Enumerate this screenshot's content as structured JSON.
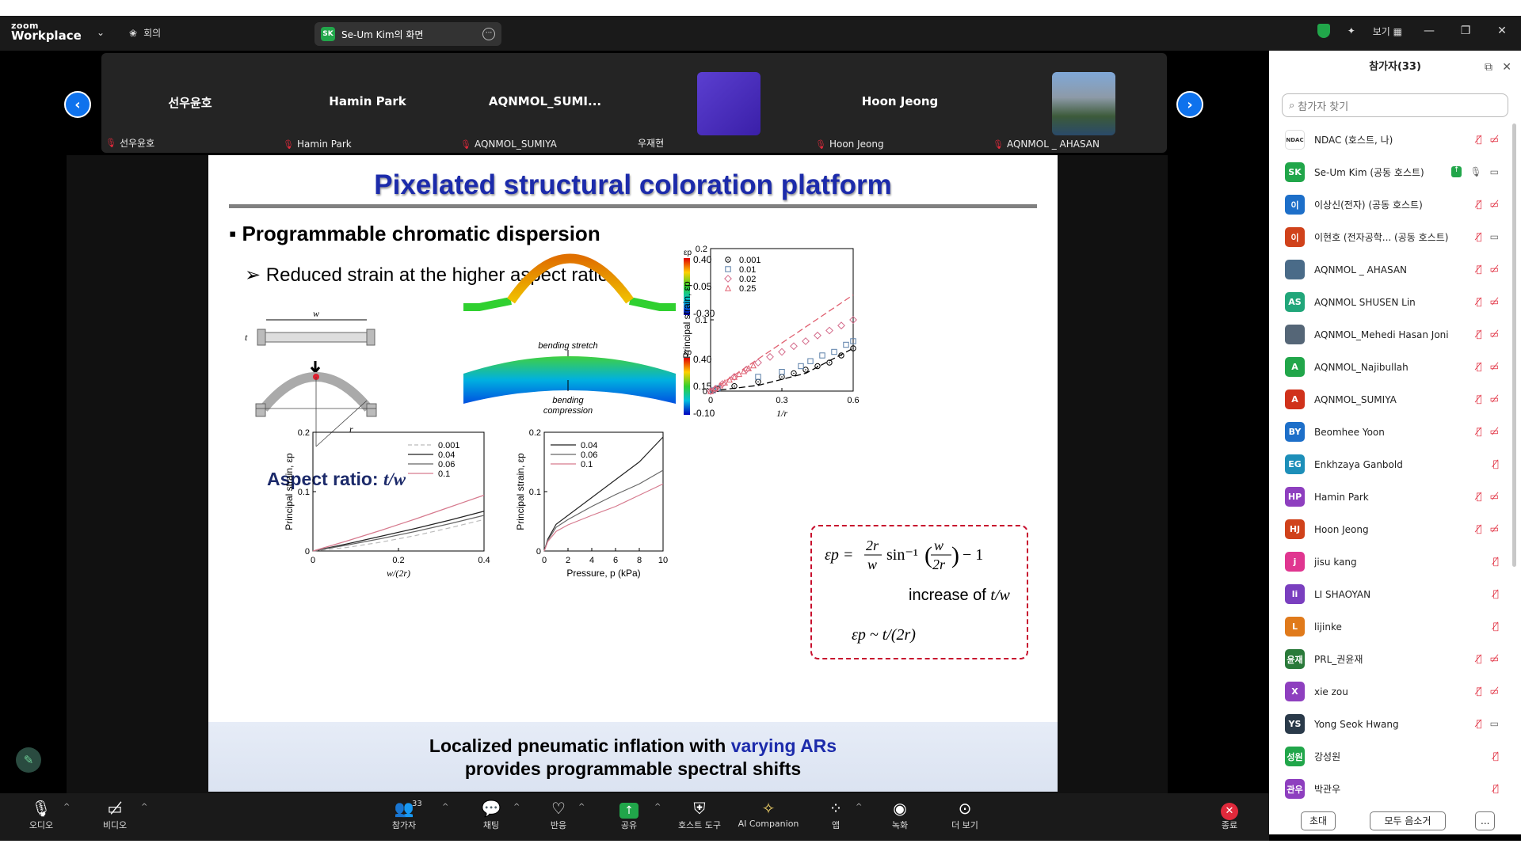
{
  "app": {
    "logo_small": "zoom",
    "logo_big": "Workplace",
    "meeting_menu": "회의",
    "share_label": "Se-Um Kim의 화면",
    "share_initials": "SK",
    "view_label": "보기"
  },
  "gallery": {
    "tiles": [
      {
        "name": "선우윤호",
        "label": "선우윤호"
      },
      {
        "name": "Hamin Park",
        "label": "Hamin Park"
      },
      {
        "name": "AQNMOL_SUMI...",
        "label": "AQNMOL_SUMIYA"
      },
      {
        "name": "",
        "label": "우재현"
      },
      {
        "name": "Hoon Jeong",
        "label": "Hoon Jeong"
      },
      {
        "name": "",
        "label": "AQNMOL _ AHASAN"
      }
    ]
  },
  "slide": {
    "title": "Pixelated structural coloration platform",
    "bullet1": "Programmable chromatic dispersion",
    "bullet2": "Reduced strain at the higher aspect ratio",
    "aspect_text": "Aspect ratio: ",
    "aspect_var": "t/w",
    "schematic_w": "w",
    "schematic_t": "t",
    "schematic_r": "r",
    "sim_label_stretch": "bending stretch",
    "sim_label_compress1": "bending",
    "sim_label_compress2": "compression",
    "sim_cbar_label": "εp",
    "sim_top_ticks": [
      "0.40",
      "0.05",
      "-0.30"
    ],
    "sim_bot_ticks": [
      "0.40",
      "0.15",
      "-0.10"
    ],
    "eq_line1_lhs": "εp = ",
    "eq_inc": "increase of ",
    "eq_inc_var": "t/w",
    "eq_line3": "εp ~ t/(2r)",
    "caption_1a": "Localized pneumatic inflation with ",
    "caption_1b": "varying ARs",
    "caption_2": "provides programmable spectral shifts"
  },
  "chart_data": [
    {
      "type": "scatter",
      "xlabel": "1/r",
      "ylabel": "Principal strain, εp",
      "xlim": [
        0,
        0.6
      ],
      "ylim": [
        0,
        0.2
      ],
      "xticks": [
        "0",
        "0.3",
        "0.6"
      ],
      "yticks": [
        "0",
        "0.1",
        "0.2"
      ],
      "legend_position": "top-left",
      "series": [
        {
          "name": "0.001",
          "marker": "circle",
          "color": "#000000",
          "points": [
            [
              0.01,
              0.001
            ],
            [
              0.03,
              0.003
            ],
            [
              0.1,
              0.007
            ],
            [
              0.2,
              0.013
            ],
            [
              0.3,
              0.02
            ],
            [
              0.35,
              0.025
            ],
            [
              0.4,
              0.03
            ],
            [
              0.45,
              0.035
            ],
            [
              0.5,
              0.04
            ],
            [
              0.55,
              0.05
            ],
            [
              0.6,
              0.06
            ]
          ]
        },
        {
          "name": "0.01",
          "marker": "square",
          "color": "#5a7fa8",
          "points": [
            [
              0.01,
              0.001
            ],
            [
              0.03,
              0.004
            ],
            [
              0.2,
              0.02
            ],
            [
              0.3,
              0.027
            ],
            [
              0.38,
              0.035
            ],
            [
              0.42,
              0.042
            ],
            [
              0.47,
              0.05
            ],
            [
              0.52,
              0.055
            ],
            [
              0.57,
              0.065
            ],
            [
              0.6,
              0.07
            ]
          ]
        },
        {
          "name": "0.02",
          "marker": "diamond",
          "color": "#d46a8a",
          "points": [
            [
              0.0,
              0.0
            ],
            [
              0.02,
              0.003
            ],
            [
              0.05,
              0.01
            ],
            [
              0.1,
              0.02
            ],
            [
              0.15,
              0.03
            ],
            [
              0.2,
              0.04
            ],
            [
              0.25,
              0.048
            ],
            [
              0.3,
              0.055
            ],
            [
              0.35,
              0.063
            ],
            [
              0.4,
              0.07
            ],
            [
              0.45,
              0.078
            ],
            [
              0.5,
              0.085
            ],
            [
              0.55,
              0.092
            ],
            [
              0.6,
              0.1
            ]
          ]
        },
        {
          "name": "0.25",
          "marker": "triangle",
          "color": "#e06070",
          "points": [
            [
              0.0,
              0.0
            ],
            [
              0.02,
              0.004
            ],
            [
              0.04,
              0.008
            ],
            [
              0.06,
              0.012
            ],
            [
              0.08,
              0.016
            ],
            [
              0.1,
              0.02
            ],
            [
              0.12,
              0.024
            ],
            [
              0.14,
              0.028
            ],
            [
              0.16,
              0.032
            ],
            [
              0.18,
              0.036
            ]
          ]
        }
      ],
      "fit_lines": [
        {
          "style": "dashed-black",
          "points": [
            [
              0,
              0
            ],
            [
              0.2,
              0.008
            ],
            [
              0.4,
              0.025
            ],
            [
              0.6,
              0.06
            ]
          ]
        },
        {
          "style": "dashed-red",
          "points": [
            [
              0,
              0
            ],
            [
              0.6,
              0.135
            ]
          ]
        }
      ]
    },
    {
      "type": "line",
      "xlabel": "w/(2r)",
      "ylabel": "Principal strain, εp",
      "xlim": [
        0,
        0.5
      ],
      "ylim": [
        0,
        0.2
      ],
      "xticks": [
        "0",
        "0.2",
        "0.4"
      ],
      "yticks": [
        "0",
        "0.1",
        "0.2"
      ],
      "legend_position": "top-right",
      "series": [
        {
          "name": "0.001",
          "color": "#bbbbbb",
          "dash": true,
          "x": [
            0,
            0.1,
            0.2,
            0.3,
            0.4,
            0.5
          ],
          "y": [
            0,
            0.006,
            0.015,
            0.026,
            0.039,
            0.053
          ]
        },
        {
          "name": "0.04",
          "color": "#222222",
          "x": [
            0,
            0.1,
            0.2,
            0.3,
            0.4,
            0.5
          ],
          "y": [
            0,
            0.012,
            0.025,
            0.038,
            0.052,
            0.067
          ]
        },
        {
          "name": "0.06",
          "color": "#666666",
          "x": [
            0,
            0.1,
            0.2,
            0.3,
            0.4,
            0.5
          ],
          "y": [
            0,
            0.01,
            0.021,
            0.033,
            0.046,
            0.06
          ]
        },
        {
          "name": "0.1",
          "color": "#d67a8e",
          "x": [
            0,
            0.1,
            0.2,
            0.3,
            0.4,
            0.5
          ],
          "y": [
            0,
            0.017,
            0.035,
            0.054,
            0.074,
            0.094
          ]
        }
      ]
    },
    {
      "type": "line",
      "xlabel": "Pressure, p (kPa)",
      "ylabel": "Principal strain, εp",
      "xlim": [
        0,
        10
      ],
      "ylim": [
        0,
        0.2
      ],
      "xticks": [
        "0",
        "2",
        "4",
        "6",
        "8",
        "10"
      ],
      "yticks": [
        "0",
        "0.1",
        "0.2"
      ],
      "legend_position": "top-left",
      "series": [
        {
          "name": "0.04",
          "color": "#222222",
          "x": [
            0,
            0.3,
            1,
            2,
            4,
            6,
            8,
            10
          ],
          "y": [
            0,
            0.02,
            0.045,
            0.06,
            0.09,
            0.12,
            0.15,
            0.192
          ]
        },
        {
          "name": "0.06",
          "color": "#666666",
          "x": [
            0,
            0.3,
            1,
            2,
            4,
            6,
            8,
            10
          ],
          "y": [
            0,
            0.018,
            0.04,
            0.053,
            0.075,
            0.095,
            0.113,
            0.136
          ]
        },
        {
          "name": "0.1",
          "color": "#d67a8e",
          "x": [
            0,
            0.3,
            1,
            2,
            4,
            6,
            8,
            10
          ],
          "y": [
            0,
            0.016,
            0.033,
            0.044,
            0.06,
            0.075,
            0.094,
            0.113
          ]
        }
      ]
    }
  ],
  "panel": {
    "title": "참가자(33)",
    "search_placeholder": "참가자 찾기",
    "invite": "초대",
    "mute_all": "모두 음소거",
    "more": "...",
    "participants": [
      {
        "initials": "NDAC",
        "color": "#ffffff",
        "name": "NDAC (호스트, 나)",
        "icons": "mv"
      },
      {
        "initials": "SK",
        "color": "#21a64a",
        "name": "Se-Um Kim (공동 호스트)",
        "icons": "share"
      },
      {
        "initials": "이",
        "color": "#1d6fc9",
        "name": "이상신(전자) (공동 호스트)",
        "icons": "mv"
      },
      {
        "initials": "이",
        "color": "#d0421b",
        "name": "이현호 (전자공학... (공동 호스트)",
        "icons": "mg"
      },
      {
        "initials": "",
        "color": "#4a6b88",
        "name": "AQNMOL _ AHASAN",
        "icons": "mv"
      },
      {
        "initials": "AS",
        "color": "#21a67a",
        "name": "AQNMOL SHUSEN Lin",
        "icons": "mv"
      },
      {
        "initials": "",
        "color": "#556677",
        "name": "AQNMOL_Mehedi Hasan Joni",
        "icons": "mv"
      },
      {
        "initials": "A",
        "color": "#21a64a",
        "name": "AQNMOL_Najibullah",
        "icons": "mv"
      },
      {
        "initials": "A",
        "color": "#d0321b",
        "name": "AQNMOL_SUMIYA",
        "icons": "mv"
      },
      {
        "initials": "BY",
        "color": "#1d6fc9",
        "name": "Beomhee Yoon",
        "icons": "mv"
      },
      {
        "initials": "EG",
        "color": "#1d8fb9",
        "name": "Enkhzaya Ganbold",
        "icons": "m"
      },
      {
        "initials": "HP",
        "color": "#8e3fbf",
        "name": "Hamin Park",
        "icons": "mv"
      },
      {
        "initials": "HJ",
        "color": "#d0421b",
        "name": "Hoon Jeong",
        "icons": "mv"
      },
      {
        "initials": "j",
        "color": "#e03690",
        "name": "jisu kang",
        "icons": "m"
      },
      {
        "initials": "li",
        "color": "#7a3fbf",
        "name": "LI SHAOYAN",
        "icons": "m"
      },
      {
        "initials": "L",
        "color": "#e07a1b",
        "name": "lijinke",
        "icons": "m"
      },
      {
        "initials": "윤재",
        "color": "#2a7a3a",
        "name": "PRL_권윤재",
        "icons": "mv"
      },
      {
        "initials": "X",
        "color": "#8e3fbf",
        "name": "xie zou",
        "icons": "mv"
      },
      {
        "initials": "YS",
        "color": "#2a3a4a",
        "name": "Yong Seok Hwang",
        "icons": "mg"
      },
      {
        "initials": "성원",
        "color": "#21a64a",
        "name": "강성원",
        "icons": "m"
      },
      {
        "initials": "관우",
        "color": "#8e3fbf",
        "name": "박관우",
        "icons": "m"
      }
    ]
  },
  "toolbar": {
    "audio": "오디오",
    "video": "비디오",
    "participants": "참가자",
    "participants_count": "33",
    "chat": "채팅",
    "react": "반응",
    "share": "공유",
    "host_tools": "호스트 도구",
    "ai": "AI Companion",
    "apps": "앱",
    "record": "녹화",
    "more": "더 보기",
    "end": "종료"
  }
}
